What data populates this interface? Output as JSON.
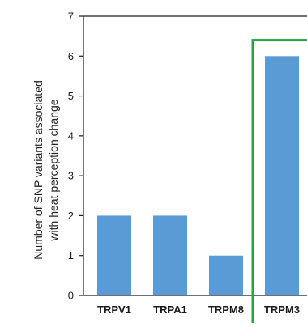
{
  "chart_data": {
    "type": "bar",
    "title": "",
    "xlabel": "",
    "ylabel_lines": [
      "Number of SNP variants associated",
      "with heat perception change"
    ],
    "categories": [
      "TRPV1",
      "TRPA1",
      "TRPM8",
      "TRPM3"
    ],
    "values": [
      2,
      2,
      1,
      6
    ],
    "ylim": [
      0,
      7
    ],
    "yticks": [
      "0",
      "1",
      "2",
      "3",
      "4",
      "5",
      "6",
      "7"
    ],
    "grid": false,
    "legend": "none",
    "highlight_category": "TRPM3",
    "colors": {
      "bar": "#5b9bd5",
      "highlight_box": "#1fa64a",
      "axis": "#1a1a1a"
    }
  }
}
